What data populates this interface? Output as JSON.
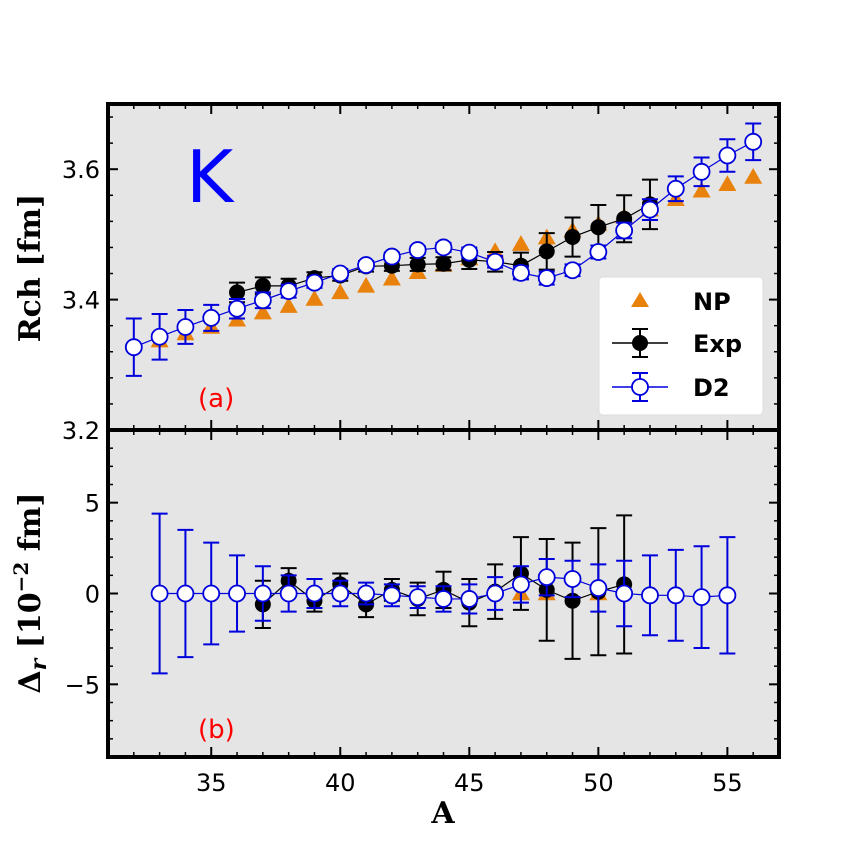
{
  "colors": {
    "panel_bg": "#e5e5e5",
    "np": "#e8820c",
    "exp": "#000000",
    "d2": "#0000dd",
    "element_tag": "#0000ff",
    "panel_tag": "#ff0000"
  },
  "chart_data": [
    {
      "type": "scatter",
      "panel": "a",
      "annotation_element": "K",
      "annotation_panel": "(a)",
      "xlabel": "A",
      "ylabel": "Rch [fm]",
      "xlim": [
        31,
        57
      ],
      "ylim": [
        3.2,
        3.7
      ],
      "xticks": [
        35,
        40,
        45,
        50,
        55
      ],
      "yticks": [
        3.2,
        3.4,
        3.6
      ],
      "ytick_labels": [
        "3.2",
        "3.4",
        "3.6"
      ],
      "legend_position": "lower-right",
      "series": [
        {
          "name": "NP",
          "marker": "triangle",
          "x": [
            33,
            34,
            35,
            36,
            37,
            38,
            39,
            40,
            41,
            42,
            43,
            44,
            45,
            46,
            47,
            48,
            49,
            50,
            51,
            52,
            53,
            54,
            55,
            56
          ],
          "y": [
            3.337,
            3.348,
            3.358,
            3.369,
            3.38,
            3.39,
            3.401,
            3.411,
            3.421,
            3.432,
            3.442,
            3.453,
            3.463,
            3.474,
            3.485,
            3.495,
            3.506,
            3.516,
            3.527,
            3.538,
            3.554,
            3.567,
            3.577,
            3.588
          ]
        },
        {
          "name": "Exp",
          "marker": "filled-circle",
          "x": [
            36,
            37,
            38,
            39,
            40,
            41,
            42,
            43,
            44,
            45,
            46,
            47,
            48,
            49,
            50,
            51,
            52
          ],
          "y": [
            3.411,
            3.421,
            3.421,
            3.433,
            3.437,
            3.451,
            3.452,
            3.454,
            3.455,
            3.461,
            3.458,
            3.452,
            3.474,
            3.496,
            3.511,
            3.524,
            3.546
          ],
          "err": [
            0.015,
            0.013,
            0.011,
            0.009,
            0.008,
            0.008,
            0.008,
            0.01,
            0.01,
            0.014,
            0.015,
            0.02,
            0.028,
            0.03,
            0.034,
            0.036,
            0.038
          ]
        },
        {
          "name": "D2",
          "marker": "open-circle",
          "x": [
            32,
            33,
            34,
            35,
            36,
            37,
            38,
            39,
            40,
            41,
            42,
            43,
            44,
            45,
            46,
            47,
            48,
            49,
            50,
            51,
            52,
            53,
            54,
            55,
            56
          ],
          "y": [
            3.327,
            3.343,
            3.358,
            3.372,
            3.386,
            3.399,
            3.413,
            3.426,
            3.44,
            3.453,
            3.466,
            3.476,
            3.48,
            3.472,
            3.458,
            3.441,
            3.433,
            3.445,
            3.473,
            3.506,
            3.538,
            3.57,
            3.596,
            3.621,
            3.642
          ],
          "err": [
            0.044,
            0.035,
            0.026,
            0.02,
            0.015,
            0.012,
            0.01,
            0.008,
            0.007,
            0.006,
            0.006,
            0.006,
            0.007,
            0.008,
            0.009,
            0.01,
            0.01,
            0.009,
            0.01,
            0.012,
            0.016,
            0.019,
            0.022,
            0.025,
            0.028
          ]
        }
      ]
    },
    {
      "type": "scatter",
      "panel": "b",
      "annotation_panel": "(b)",
      "xlabel": "A",
      "ylabel": "Δr [10−2 fm]",
      "xlim": [
        31,
        57
      ],
      "ylim": [
        -9,
        9
      ],
      "xticks": [
        35,
        40,
        45,
        50,
        55
      ],
      "xtick_labels": [
        "35",
        "40",
        "45",
        "50",
        "55"
      ],
      "yticks": [
        -5,
        0,
        5
      ],
      "ytick_labels": [
        "−5",
        "0",
        "5"
      ],
      "series": [
        {
          "name": "NP",
          "marker": "triangle",
          "x": [
            47,
            48,
            50
          ],
          "y": [
            0,
            0,
            0
          ]
        },
        {
          "name": "Exp",
          "marker": "filled-circle",
          "x": [
            37,
            38,
            39,
            40,
            41,
            42,
            43,
            44,
            45,
            46,
            47,
            48,
            49,
            50,
            51
          ],
          "y": [
            -0.6,
            0.7,
            -0.4,
            0.5,
            -0.6,
            0.2,
            -0.3,
            0.2,
            -0.5,
            0.1,
            1.1,
            0.2,
            -0.4,
            0.1,
            0.5
          ],
          "err": [
            1.3,
            0.7,
            0.6,
            0.6,
            0.7,
            0.6,
            0.9,
            1.0,
            1.3,
            1.5,
            2.0,
            2.8,
            3.2,
            3.5,
            3.8
          ]
        },
        {
          "name": "D2",
          "marker": "open-circle",
          "x": [
            33,
            34,
            35,
            36,
            37,
            38,
            39,
            40,
            41,
            42,
            43,
            44,
            45,
            46,
            47,
            48,
            49,
            50,
            51,
            52,
            53,
            54,
            55
          ],
          "y": [
            0.0,
            0.0,
            0.0,
            0.0,
            0.0,
            0.0,
            0.0,
            0.0,
            0.0,
            -0.1,
            -0.2,
            -0.3,
            -0.3,
            0.0,
            0.5,
            0.9,
            0.8,
            0.3,
            0.0,
            -0.1,
            -0.1,
            -0.2,
            -0.1
          ],
          "err": [
            4.4,
            3.5,
            2.8,
            2.1,
            1.5,
            1.0,
            0.8,
            0.7,
            0.6,
            0.6,
            0.6,
            0.7,
            0.8,
            0.9,
            1.0,
            1.0,
            1.0,
            1.3,
            1.8,
            2.2,
            2.5,
            2.8,
            3.2
          ]
        }
      ]
    }
  ]
}
